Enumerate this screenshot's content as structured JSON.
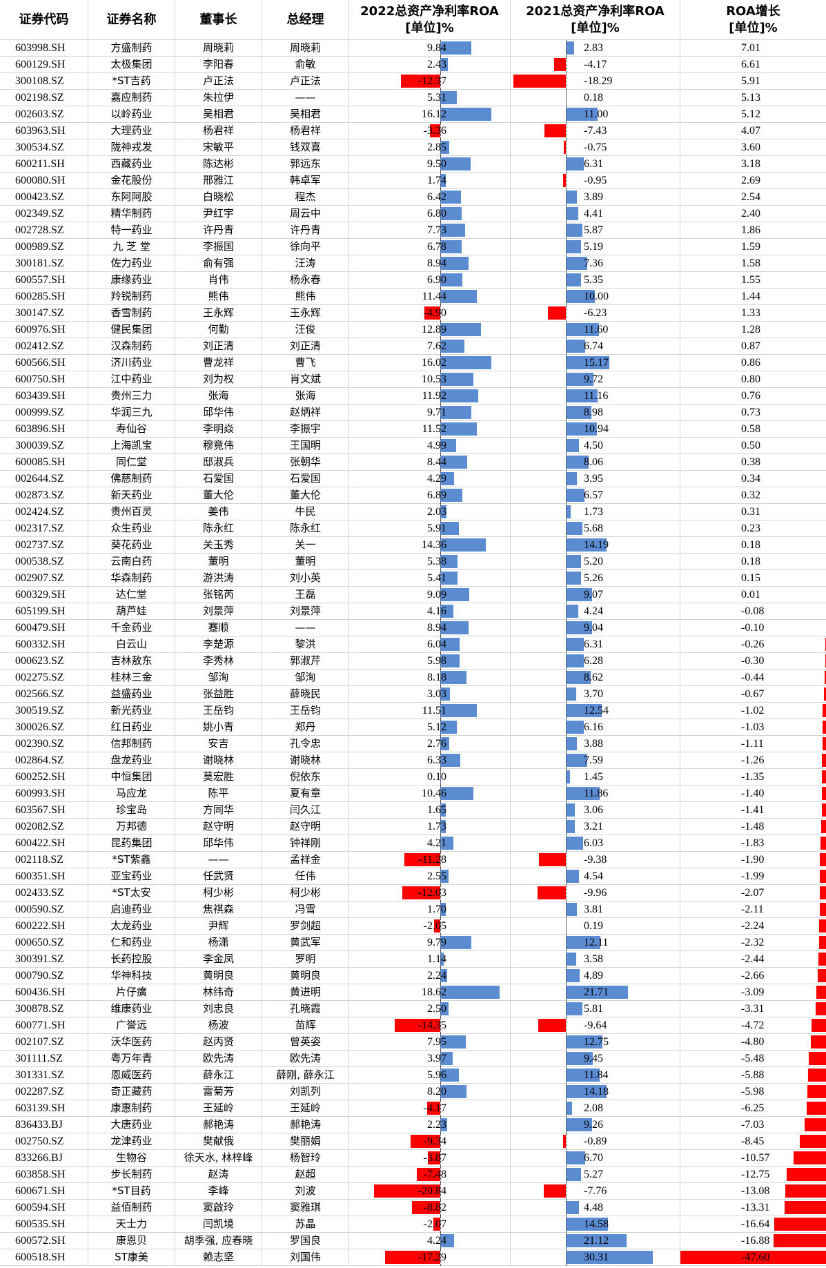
{
  "headers": {
    "code": "证券代码",
    "name": "证券名称",
    "chairman": "董事长",
    "gm": "总经理",
    "roa2022": "2022总资产净利率ROA\n[单位]%",
    "roa2021": "2021总资产净利率ROA\n[单位]%",
    "growth": "ROA增长\n[单位]%"
  },
  "colors": {
    "positive_bar": "#5b8bd0",
    "negative_bar": "#ff0000"
  },
  "rows": [
    {
      "code": "603998.SH",
      "name": "方盛制药",
      "chairman": "周晓莉",
      "gm": "周晓莉",
      "roa2022": "9.84",
      "roa2021": "2.83",
      "growth": "7.01"
    },
    {
      "code": "600129.SH",
      "name": "太极集团",
      "chairman": "李阳春",
      "gm": "俞敏",
      "roa2022": "2.43",
      "roa2021": "-4.17",
      "growth": "6.61"
    },
    {
      "code": "300108.SZ",
      "name": "*ST吉药",
      "chairman": "卢正法",
      "gm": "卢正法",
      "roa2022": "-12.37",
      "roa2021": "-18.29",
      "growth": "5.91"
    },
    {
      "code": "002198.SZ",
      "name": "嘉应制药",
      "chairman": "朱拉伊",
      "gm": "——",
      "roa2022": "5.31",
      "roa2021": "0.18",
      "growth": "5.13"
    },
    {
      "code": "002603.SZ",
      "name": "以岭药业",
      "chairman": "吴相君",
      "gm": "吴相君",
      "roa2022": "16.12",
      "roa2021": "11.00",
      "growth": "5.12"
    },
    {
      "code": "603963.SH",
      "name": "大理药业",
      "chairman": "杨君祥",
      "gm": "杨君祥",
      "roa2022": "-3.36",
      "roa2021": "-7.43",
      "growth": "4.07"
    },
    {
      "code": "300534.SZ",
      "name": "陇神戎发",
      "chairman": "宋敏平",
      "gm": "钱双喜",
      "roa2022": "2.85",
      "roa2021": "-0.75",
      "growth": "3.60"
    },
    {
      "code": "600211.SH",
      "name": "西藏药业",
      "chairman": "陈达彬",
      "gm": "郭远东",
      "roa2022": "9.50",
      "roa2021": "6.31",
      "growth": "3.18"
    },
    {
      "code": "600080.SH",
      "name": "金花股份",
      "chairman": "邢雅江",
      "gm": "韩卓军",
      "roa2022": "1.74",
      "roa2021": "-0.95",
      "growth": "2.69"
    },
    {
      "code": "000423.SZ",
      "name": "东阿阿胶",
      "chairman": "白晓松",
      "gm": "程杰",
      "roa2022": "6.42",
      "roa2021": "3.89",
      "growth": "2.54"
    },
    {
      "code": "002349.SZ",
      "name": "精华制药",
      "chairman": "尹红宇",
      "gm": "周云中",
      "roa2022": "6.80",
      "roa2021": "4.41",
      "growth": "2.40"
    },
    {
      "code": "002728.SZ",
      "name": "特一药业",
      "chairman": "许丹青",
      "gm": "许丹青",
      "roa2022": "7.73",
      "roa2021": "5.87",
      "growth": "1.86"
    },
    {
      "code": "000989.SZ",
      "name": "九 芝 堂",
      "chairman": "李振国",
      "gm": "徐向平",
      "roa2022": "6.78",
      "roa2021": "5.19",
      "growth": "1.59"
    },
    {
      "code": "300181.SZ",
      "name": "佐力药业",
      "chairman": "俞有强",
      "gm": "汪涛",
      "roa2022": "8.94",
      "roa2021": "7.36",
      "growth": "1.58"
    },
    {
      "code": "600557.SH",
      "name": "康缘药业",
      "chairman": "肖伟",
      "gm": "杨永春",
      "roa2022": "6.90",
      "roa2021": "5.35",
      "growth": "1.55"
    },
    {
      "code": "600285.SH",
      "name": "羚锐制药",
      "chairman": "熊伟",
      "gm": "熊伟",
      "roa2022": "11.44",
      "roa2021": "10.00",
      "growth": "1.44"
    },
    {
      "code": "300147.SZ",
      "name": "香雪制药",
      "chairman": "王永辉",
      "gm": "王永辉",
      "roa2022": "-4.90",
      "roa2021": "-6.23",
      "growth": "1.33"
    },
    {
      "code": "600976.SH",
      "name": "健民集团",
      "chairman": "何勤",
      "gm": "汪俊",
      "roa2022": "12.89",
      "roa2021": "11.60",
      "growth": "1.28"
    },
    {
      "code": "002412.SZ",
      "name": "汉森制药",
      "chairman": "刘正清",
      "gm": "刘正清",
      "roa2022": "7.62",
      "roa2021": "6.74",
      "growth": "0.87"
    },
    {
      "code": "600566.SH",
      "name": "济川药业",
      "chairman": "曹龙祥",
      "gm": "曹飞",
      "roa2022": "16.02",
      "roa2021": "15.17",
      "growth": "0.86"
    },
    {
      "code": "600750.SH",
      "name": "江中药业",
      "chairman": "刘为权",
      "gm": "肖文斌",
      "roa2022": "10.53",
      "roa2021": "9.72",
      "growth": "0.80"
    },
    {
      "code": "603439.SH",
      "name": "贵州三力",
      "chairman": "张海",
      "gm": "张海",
      "roa2022": "11.92",
      "roa2021": "11.16",
      "growth": "0.76"
    },
    {
      "code": "000999.SZ",
      "name": "华润三九",
      "chairman": "邱华伟",
      "gm": "赵炳祥",
      "roa2022": "9.71",
      "roa2021": "8.98",
      "growth": "0.73"
    },
    {
      "code": "603896.SH",
      "name": "寿仙谷",
      "chairman": "李明焱",
      "gm": "李振宇",
      "roa2022": "11.52",
      "roa2021": "10.94",
      "growth": "0.58"
    },
    {
      "code": "300039.SZ",
      "name": "上海凯宝",
      "chairman": "穆竟伟",
      "gm": "王国明",
      "roa2022": "4.99",
      "roa2021": "4.50",
      "growth": "0.50"
    },
    {
      "code": "600085.SH",
      "name": "同仁堂",
      "chairman": "邸淑兵",
      "gm": "张朝华",
      "roa2022": "8.44",
      "roa2021": "8.06",
      "growth": "0.38"
    },
    {
      "code": "002644.SZ",
      "name": "佛慈制药",
      "chairman": "石爱国",
      "gm": "石爱国",
      "roa2022": "4.29",
      "roa2021": "3.95",
      "growth": "0.34"
    },
    {
      "code": "002873.SZ",
      "name": "新天药业",
      "chairman": "董大伦",
      "gm": "董大伦",
      "roa2022": "6.89",
      "roa2021": "6.57",
      "growth": "0.32"
    },
    {
      "code": "002424.SZ",
      "name": "贵州百灵",
      "chairman": "姜伟",
      "gm": "牛民",
      "roa2022": "2.03",
      "roa2021": "1.73",
      "growth": "0.31"
    },
    {
      "code": "002317.SZ",
      "name": "众生药业",
      "chairman": "陈永红",
      "gm": "陈永红",
      "roa2022": "5.91",
      "roa2021": "5.68",
      "growth": "0.23"
    },
    {
      "code": "002737.SZ",
      "name": "葵花药业",
      "chairman": "关玉秀",
      "gm": "关一",
      "roa2022": "14.36",
      "roa2021": "14.19",
      "growth": "0.18"
    },
    {
      "code": "000538.SZ",
      "name": "云南白药",
      "chairman": "董明",
      "gm": "董明",
      "roa2022": "5.38",
      "roa2021": "5.20",
      "growth": "0.18"
    },
    {
      "code": "002907.SZ",
      "name": "华森制药",
      "chairman": "游洪涛",
      "gm": "刘小英",
      "roa2022": "5.41",
      "roa2021": "5.26",
      "growth": "0.15"
    },
    {
      "code": "600329.SH",
      "name": "达仁堂",
      "chairman": "张铭芮",
      "gm": "王磊",
      "roa2022": "9.09",
      "roa2021": "9.07",
      "growth": "0.01"
    },
    {
      "code": "605199.SH",
      "name": "葫芦娃",
      "chairman": "刘景萍",
      "gm": "刘景萍",
      "roa2022": "4.16",
      "roa2021": "4.24",
      "growth": "-0.08"
    },
    {
      "code": "600479.SH",
      "name": "千金药业",
      "chairman": "蹇顺",
      "gm": "——",
      "roa2022": "8.94",
      "roa2021": "9.04",
      "growth": "-0.10"
    },
    {
      "code": "600332.SH",
      "name": "白云山",
      "chairman": "李楚源",
      "gm": "黎洪",
      "roa2022": "6.04",
      "roa2021": "6.31",
      "growth": "-0.26"
    },
    {
      "code": "000623.SZ",
      "name": "吉林敖东",
      "chairman": "李秀林",
      "gm": "郭淑芹",
      "roa2022": "5.98",
      "roa2021": "6.28",
      "growth": "-0.30"
    },
    {
      "code": "002275.SZ",
      "name": "桂林三金",
      "chairman": "邹洵",
      "gm": "邹洵",
      "roa2022": "8.18",
      "roa2021": "8.62",
      "growth": "-0.44"
    },
    {
      "code": "002566.SZ",
      "name": "益盛药业",
      "chairman": "张益胜",
      "gm": "薛晓民",
      "roa2022": "3.03",
      "roa2021": "3.70",
      "growth": "-0.67"
    },
    {
      "code": "300519.SZ",
      "name": "新光药业",
      "chairman": "王岳钧",
      "gm": "王岳钧",
      "roa2022": "11.51",
      "roa2021": "12.54",
      "growth": "-1.02"
    },
    {
      "code": "300026.SZ",
      "name": "红日药业",
      "chairman": "姚小青",
      "gm": "郑丹",
      "roa2022": "5.12",
      "roa2021": "6.16",
      "growth": "-1.03"
    },
    {
      "code": "002390.SZ",
      "name": "信邦制药",
      "chairman": "安吉",
      "gm": "孔令忠",
      "roa2022": "2.76",
      "roa2021": "3.88",
      "growth": "-1.11"
    },
    {
      "code": "002864.SZ",
      "name": "盘龙药业",
      "chairman": "谢晓林",
      "gm": "谢晓林",
      "roa2022": "6.33",
      "roa2021": "7.59",
      "growth": "-1.26"
    },
    {
      "code": "600252.SH",
      "name": "中恒集团",
      "chairman": "莫宏胜",
      "gm": "倪依东",
      "roa2022": "0.10",
      "roa2021": "1.45",
      "growth": "-1.35"
    },
    {
      "code": "600993.SH",
      "name": "马应龙",
      "chairman": "陈平",
      "gm": "夏有章",
      "roa2022": "10.46",
      "roa2021": "11.86",
      "growth": "-1.40"
    },
    {
      "code": "603567.SH",
      "name": "珍宝岛",
      "chairman": "方同华",
      "gm": "闫久江",
      "roa2022": "1.65",
      "roa2021": "3.06",
      "growth": "-1.41"
    },
    {
      "code": "002082.SZ",
      "name": "万邦德",
      "chairman": "赵守明",
      "gm": "赵守明",
      "roa2022": "1.73",
      "roa2021": "3.21",
      "growth": "-1.48"
    },
    {
      "code": "600422.SH",
      "name": "昆药集团",
      "chairman": "邱华伟",
      "gm": "钟祥刚",
      "roa2022": "4.21",
      "roa2021": "6.03",
      "growth": "-1.83"
    },
    {
      "code": "002118.SZ",
      "name": "*ST紫鑫",
      "chairman": "——",
      "gm": "孟祥金",
      "roa2022": "-11.28",
      "roa2021": "-9.38",
      "growth": "-1.90"
    },
    {
      "code": "600351.SH",
      "name": "亚宝药业",
      "chairman": "任武贤",
      "gm": "任伟",
      "roa2022": "2.55",
      "roa2021": "4.54",
      "growth": "-1.99"
    },
    {
      "code": "002433.SZ",
      "name": "*ST太安",
      "chairman": "柯少彬",
      "gm": "柯少彬",
      "roa2022": "-12.03",
      "roa2021": "-9.96",
      "growth": "-2.07"
    },
    {
      "code": "000590.SZ",
      "name": "启迪药业",
      "chairman": "焦祺森",
      "gm": "冯雪",
      "roa2022": "1.70",
      "roa2021": "3.81",
      "growth": "-2.11"
    },
    {
      "code": "600222.SH",
      "name": "太龙药业",
      "chairman": "尹辉",
      "gm": "罗剑超",
      "roa2022": "-2.05",
      "roa2021": "0.19",
      "growth": "-2.24"
    },
    {
      "code": "000650.SZ",
      "name": "仁和药业",
      "chairman": "杨潇",
      "gm": "黄武军",
      "roa2022": "9.79",
      "roa2021": "12.11",
      "growth": "-2.32"
    },
    {
      "code": "300391.SZ",
      "name": "长药控股",
      "chairman": "李金凤",
      "gm": "罗明",
      "roa2022": "1.14",
      "roa2021": "3.58",
      "growth": "-2.44"
    },
    {
      "code": "000790.SZ",
      "name": "华神科技",
      "chairman": "黄明良",
      "gm": "黄明良",
      "roa2022": "2.24",
      "roa2021": "4.89",
      "growth": "-2.66"
    },
    {
      "code": "600436.SH",
      "name": "片仔癀",
      "chairman": "林纬奇",
      "gm": "黄进明",
      "roa2022": "18.62",
      "roa2021": "21.71",
      "growth": "-3.09"
    },
    {
      "code": "300878.SZ",
      "name": "维康药业",
      "chairman": "刘忠良",
      "gm": "孔晓霞",
      "roa2022": "2.50",
      "roa2021": "5.81",
      "growth": "-3.31"
    },
    {
      "code": "600771.SH",
      "name": "广誉远",
      "chairman": "杨波",
      "gm": "苗辉",
      "roa2022": "-14.35",
      "roa2021": "-9.64",
      "growth": "-4.72"
    },
    {
      "code": "002107.SZ",
      "name": "沃华医药",
      "chairman": "赵丙贤",
      "gm": "曾英姿",
      "roa2022": "7.95",
      "roa2021": "12.75",
      "growth": "-4.80"
    },
    {
      "code": "301111.SZ",
      "name": "粤万年青",
      "chairman": "欧先涛",
      "gm": "欧先涛",
      "roa2022": "3.97",
      "roa2021": "9.45",
      "growth": "-5.48"
    },
    {
      "code": "301331.SZ",
      "name": "恩威医药",
      "chairman": "薛永江",
      "gm": "薛刚, 薛永江",
      "roa2022": "5.96",
      "roa2021": "11.84",
      "growth": "-5.88"
    },
    {
      "code": "002287.SZ",
      "name": "奇正藏药",
      "chairman": "雷菊芳",
      "gm": "刘凯列",
      "roa2022": "8.20",
      "roa2021": "14.18",
      "growth": "-5.98"
    },
    {
      "code": "603139.SH",
      "name": "康惠制药",
      "chairman": "王延岭",
      "gm": "王延岭",
      "roa2022": "-4.17",
      "roa2021": "2.08",
      "growth": "-6.25"
    },
    {
      "code": "836433.BJ",
      "name": "大唐药业",
      "chairman": "郝艳涛",
      "gm": "郝艳涛",
      "roa2022": "2.23",
      "roa2021": "9.26",
      "growth": "-7.03"
    },
    {
      "code": "002750.SZ",
      "name": "龙津药业",
      "chairman": "樊献俄",
      "gm": "樊丽娟",
      "roa2022": "-9.34",
      "roa2021": "-0.89",
      "growth": "-8.45"
    },
    {
      "code": "833266.BJ",
      "name": "生物谷",
      "chairman": "徐天水, 林梓峰",
      "gm": "杨智玲",
      "roa2022": "-3.87",
      "roa2021": "6.70",
      "growth": "-10.57"
    },
    {
      "code": "603858.SH",
      "name": "步长制药",
      "chairman": "赵涛",
      "gm": "赵超",
      "roa2022": "-7.48",
      "roa2021": "5.27",
      "growth": "-12.75"
    },
    {
      "code": "600671.SH",
      "name": "*ST目药",
      "chairman": "李峰",
      "gm": "刘波",
      "roa2022": "-20.84",
      "roa2021": "-7.76",
      "growth": "-13.08"
    },
    {
      "code": "600594.SH",
      "name": "益佰制药",
      "chairman": "窦啟玲",
      "gm": "窦雅琪",
      "roa2022": "-8.82",
      "roa2021": "4.48",
      "growth": "-13.31"
    },
    {
      "code": "600535.SH",
      "name": "天士力",
      "chairman": "闫凯境",
      "gm": "苏晶",
      "roa2022": "-2.07",
      "roa2021": "14.58",
      "growth": "-16.64"
    },
    {
      "code": "600572.SH",
      "name": "康恩贝",
      "chairman": "胡季强, 应春晓",
      "gm": "罗国良",
      "roa2022": "4.24",
      "roa2021": "21.12",
      "growth": "-16.88"
    },
    {
      "code": "600518.SH",
      "name": "ST康美",
      "chairman": "赖志坚",
      "gm": "刘国伟",
      "roa2022": "-17.29",
      "roa2021": "30.31",
      "growth": "-47.60"
    }
  ]
}
